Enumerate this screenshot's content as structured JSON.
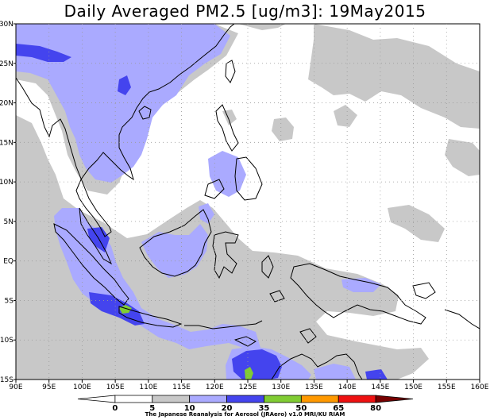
{
  "title": "Daily Averaged PM2.5 [ug/m3]: 19May2015",
  "lon_labels": [
    "90E",
    "95E",
    "100E",
    "105E",
    "110E",
    "115E",
    "120E",
    "125E",
    "130E",
    "135E",
    "140E",
    "145E",
    "150E",
    "155E",
    "160E"
  ],
  "lat_labels": [
    "30N",
    "25N",
    "20N",
    "15N",
    "10N",
    "5N",
    "EQ",
    "5S",
    "10S",
    "15S"
  ],
  "colorbar": {
    "levels": [
      "0",
      "5",
      "10",
      "20",
      "35",
      "50",
      "65",
      "80"
    ],
    "colors": [
      "#ffffff",
      "#ffffff",
      "#c8c8c8",
      "#aaaaff",
      "#4444ee",
      "#80cc33",
      "#ff9900",
      "#ee1111",
      "#770000"
    ]
  },
  "field_colors": {
    "light": "#c8c8c8",
    "mid": "#aaaaff",
    "high": "#4444ee",
    "top": "#80cc33"
  },
  "credit": "The Japanese Reanalysis for Aerosol (JRAero) v1.0 MRI/KU RIAM"
}
